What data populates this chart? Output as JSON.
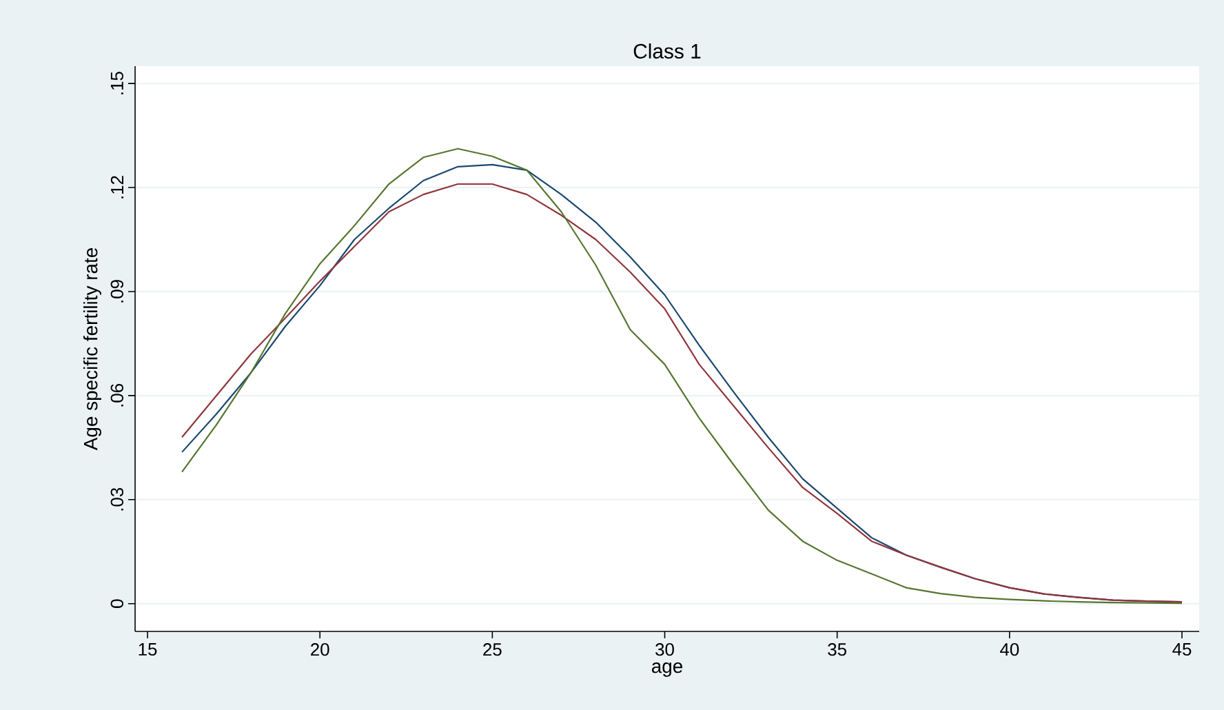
{
  "chart_data": {
    "type": "line",
    "title": "Class 1",
    "xlabel": "age",
    "ylabel": "Age specific fertility rate",
    "x": [
      16,
      17,
      18,
      19,
      20,
      21,
      22,
      23,
      24,
      25,
      26,
      27,
      28,
      29,
      30,
      31,
      32,
      33,
      34,
      35,
      36,
      37,
      38,
      39,
      40,
      41,
      42,
      43,
      44,
      45
    ],
    "series": [
      {
        "color": "#1a476f",
        "values": [
          0.0437,
          0.0547,
          0.0666,
          0.08,
          0.0917,
          0.105,
          0.114,
          0.122,
          0.126,
          0.1266,
          0.125,
          0.118,
          0.11,
          0.1,
          0.089,
          0.0745,
          0.061,
          0.048,
          0.036,
          0.0275,
          0.019,
          0.014,
          0.0105,
          0.0072,
          0.0046,
          0.0028,
          0.0018,
          0.001,
          0.0007,
          0.0005
        ]
      },
      {
        "color": "#90353b",
        "values": [
          0.048,
          0.06,
          0.072,
          0.0824,
          0.093,
          0.103,
          0.113,
          0.118,
          0.121,
          0.121,
          0.118,
          0.112,
          0.105,
          0.0956,
          0.085,
          0.069,
          0.057,
          0.045,
          0.0335,
          0.026,
          0.018,
          0.014,
          0.0105,
          0.0072,
          0.0046,
          0.0028,
          0.0018,
          0.001,
          0.0007,
          0.0005
        ]
      },
      {
        "color": "#55752f",
        "values": [
          0.038,
          0.0516,
          0.0666,
          0.0837,
          0.098,
          0.109,
          0.121,
          0.1287,
          0.1312,
          0.129,
          0.125,
          0.113,
          0.0976,
          0.079,
          0.069,
          0.0535,
          0.04,
          0.027,
          0.018,
          0.0125,
          0.0086,
          0.0046,
          0.0029,
          0.0018,
          0.0012,
          0.0008,
          0.0005,
          0.0003,
          0.0002,
          0.0001
        ]
      }
    ],
    "xlim": [
      14.64,
      45.5
    ],
    "ylim": [
      -0.008,
      0.155
    ],
    "xticks": [
      15,
      20,
      25,
      30,
      35,
      40,
      45
    ],
    "yticks": [
      0,
      {
        "value": 0.03,
        "label": ".03"
      },
      {
        "value": 0.06,
        "label": ".06"
      },
      {
        "value": 0.09,
        "label": ".09"
      },
      {
        "value": 0.12,
        "label": ".12"
      },
      {
        "value": 0.15,
        "label": ".15"
      }
    ],
    "grid": "y",
    "line_style": "solid"
  }
}
